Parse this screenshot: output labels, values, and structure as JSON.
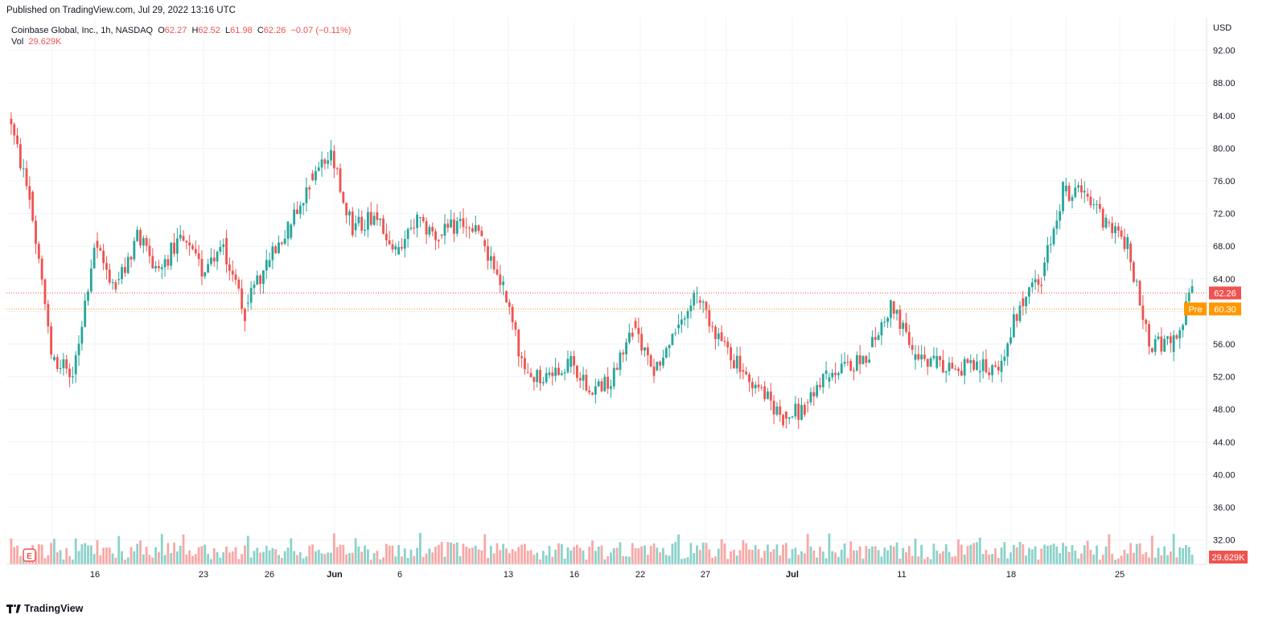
{
  "header": {
    "published": "Published on TradingView.com, Jul 29, 2022 13:16 UTC"
  },
  "legend": {
    "title": "Coinbase Global, Inc., 1h, NASDAQ",
    "o_label": "O",
    "o_value": "62.27",
    "h_label": "H",
    "h_value": "62.52",
    "l_label": "L",
    "l_value": "61.98",
    "c_label": "C",
    "c_value": "62.26",
    "change": "−0.07 (−0.11%)",
    "vol_label": "Vol",
    "vol_value": "29.629K"
  },
  "footer": {
    "brand": "TradingView"
  },
  "colors": {
    "up": "#26a69a",
    "down": "#ef5350",
    "up_vol": "#8dd2ca",
    "down_vol": "#f7a9a7",
    "pre": "#ff9800",
    "grid": "#f0f3fa"
  },
  "chart_data": {
    "type": "candlestick",
    "ylabel": "USD",
    "ylim": [
      29,
      96
    ],
    "y_ticks": [
      "32.00",
      "36.00",
      "40.00",
      "44.00",
      "48.00",
      "52.00",
      "56.00",
      "60.00",
      "64.00",
      "68.00",
      "72.00",
      "76.00",
      "80.00",
      "84.00",
      "88.00",
      "92.00"
    ],
    "x_ticks": [
      "16",
      "23",
      "26",
      "Jun",
      "6",
      "13",
      "16",
      "22",
      "27",
      "Jul",
      "11",
      "18",
      "25"
    ],
    "last_price": {
      "label": "62.26",
      "value": 62.26
    },
    "pre_price": {
      "tag": "Pre",
      "label": "60.30",
      "value": 60.3
    },
    "volume_label": "29.629K",
    "earnings_marker": "E",
    "close_anchors": [
      {
        "date": "2022-05-10",
        "close": 74
      },
      {
        "date": "2022-05-11",
        "close": 55
      },
      {
        "date": "2022-05-12",
        "close": 52
      },
      {
        "date": "2022-05-13",
        "close": 68
      },
      {
        "date": "2022-05-16",
        "close": 63
      },
      {
        "date": "2022-05-17",
        "close": 69
      },
      {
        "date": "2022-05-18",
        "close": 65
      },
      {
        "date": "2022-05-19",
        "close": 69
      },
      {
        "date": "2022-05-20",
        "close": 65
      },
      {
        "date": "2022-05-23",
        "close": 68
      },
      {
        "date": "2022-05-24",
        "close": 60
      },
      {
        "date": "2022-05-25",
        "close": 66
      },
      {
        "date": "2022-05-26",
        "close": 70
      },
      {
        "date": "2022-05-27",
        "close": 76
      },
      {
        "date": "2022-05-31",
        "close": 79
      },
      {
        "date": "2022-06-01",
        "close": 70
      },
      {
        "date": "2022-06-02",
        "close": 72
      },
      {
        "date": "2022-06-03",
        "close": 67
      },
      {
        "date": "2022-06-06",
        "close": 71
      },
      {
        "date": "2022-06-07",
        "close": 69
      },
      {
        "date": "2022-06-08",
        "close": 71
      },
      {
        "date": "2022-06-09",
        "close": 69
      },
      {
        "date": "2022-06-10",
        "close": 63
      },
      {
        "date": "2022-06-13",
        "close": 52
      },
      {
        "date": "2022-06-14",
        "close": 52
      },
      {
        "date": "2022-06-15",
        "close": 54
      },
      {
        "date": "2022-06-16",
        "close": 51
      },
      {
        "date": "2022-06-17",
        "close": 51
      },
      {
        "date": "2022-06-21",
        "close": 58
      },
      {
        "date": "2022-06-22",
        "close": 53
      },
      {
        "date": "2022-06-23",
        "close": 57
      },
      {
        "date": "2022-06-24",
        "close": 62
      },
      {
        "date": "2022-06-27",
        "close": 57
      },
      {
        "date": "2022-06-28",
        "close": 53
      },
      {
        "date": "2022-06-29",
        "close": 50
      },
      {
        "date": "2022-06-30",
        "close": 47
      },
      {
        "date": "2022-07-01",
        "close": 48
      },
      {
        "date": "2022-07-05",
        "close": 52
      },
      {
        "date": "2022-07-06",
        "close": 53
      },
      {
        "date": "2022-07-07",
        "close": 55
      },
      {
        "date": "2022-07-08",
        "close": 61
      },
      {
        "date": "2022-07-11",
        "close": 55
      },
      {
        "date": "2022-07-12",
        "close": 54
      },
      {
        "date": "2022-07-13",
        "close": 53
      },
      {
        "date": "2022-07-14",
        "close": 53
      },
      {
        "date": "2022-07-15",
        "close": 53
      },
      {
        "date": "2022-07-18",
        "close": 61
      },
      {
        "date": "2022-07-19",
        "close": 64
      },
      {
        "date": "2022-07-20",
        "close": 75
      },
      {
        "date": "2022-07-21",
        "close": 74
      },
      {
        "date": "2022-07-22",
        "close": 71
      },
      {
        "date": "2022-07-25",
        "close": 68
      },
      {
        "date": "2022-07-26",
        "close": 56
      },
      {
        "date": "2022-07-27",
        "close": 56
      },
      {
        "date": "2022-07-28",
        "close": 62
      }
    ]
  }
}
